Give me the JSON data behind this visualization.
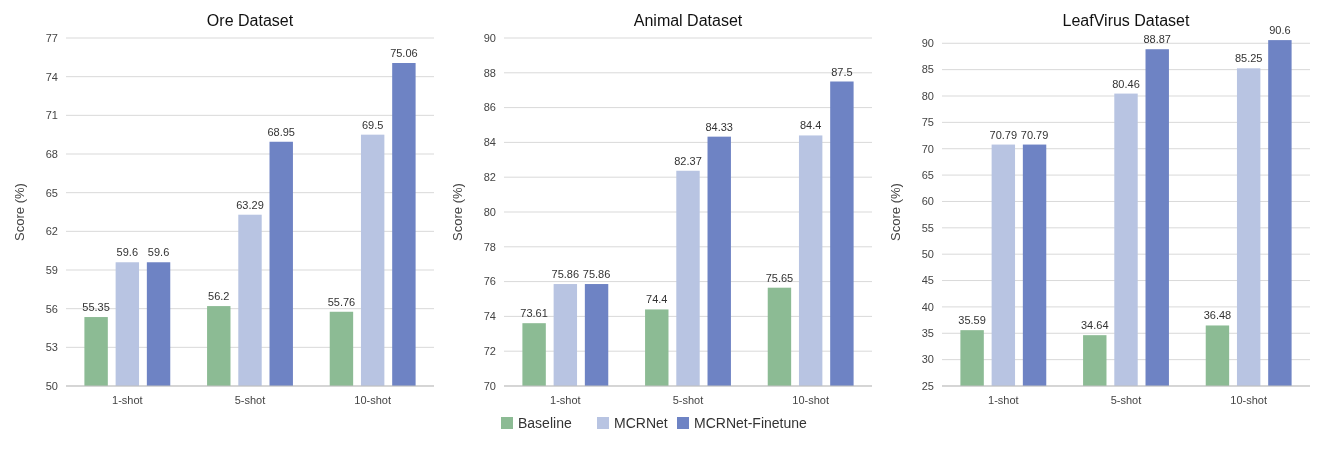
{
  "chart_data": [
    {
      "type": "bar",
      "title": "Ore Dataset",
      "ylabel": "Score (%)",
      "categories": [
        "1-shot",
        "5-shot",
        "10-shot"
      ],
      "series": [
        {
          "color": "#8cbb94",
          "values": [
            55.35,
            56.2,
            55.76
          ]
        },
        {
          "color": "#b8c4e2",
          "values": [
            59.6,
            63.29,
            69.5
          ]
        },
        {
          "color": "#6e83c4",
          "values": [
            59.6,
            68.95,
            75.06
          ]
        }
      ],
      "ylim": [
        50,
        77
      ],
      "yticks": [
        50,
        53,
        56,
        59,
        62,
        65,
        68,
        71,
        74,
        77
      ],
      "grid": "y",
      "data_labels": true,
      "legend": false
    },
    {
      "type": "bar",
      "title": "Animal Dataset",
      "ylabel": "Score (%)",
      "categories": [
        "1-shot",
        "5-shot",
        "10-shot"
      ],
      "series": [
        {
          "name": "Baseline",
          "color": "#8cbb94",
          "values": [
            73.61,
            74.4,
            75.65
          ]
        },
        {
          "name": "MCRNet",
          "color": "#b8c4e2",
          "values": [
            75.86,
            82.37,
            84.4
          ]
        },
        {
          "name": "MCRNet-Finetune",
          "color": "#6e83c4",
          "values": [
            75.86,
            84.33,
            87.5
          ]
        }
      ],
      "ylim": [
        70,
        90
      ],
      "yticks": [
        70,
        72,
        74,
        76,
        78,
        80,
        82,
        84,
        86,
        88,
        90
      ],
      "grid": "y",
      "data_labels": true,
      "legend": "bottom"
    },
    {
      "type": "bar",
      "title": "LeafVirus Dataset",
      "ylabel": "Score (%)",
      "categories": [
        "1-shot",
        "5-shot",
        "10-shot"
      ],
      "series": [
        {
          "color": "#8cbb94",
          "values": [
            35.59,
            34.64,
            36.48
          ]
        },
        {
          "color": "#b8c4e2",
          "values": [
            70.79,
            80.46,
            85.25
          ]
        },
        {
          "color": "#6e83c4",
          "values": [
            70.79,
            88.87,
            90.6
          ]
        }
      ],
      "ylim": [
        25,
        91
      ],
      "yticks": [
        25,
        30,
        35,
        40,
        45,
        50,
        55,
        60,
        65,
        70,
        75,
        80,
        85,
        90
      ],
      "grid": "y",
      "data_labels": true,
      "legend": false
    }
  ]
}
